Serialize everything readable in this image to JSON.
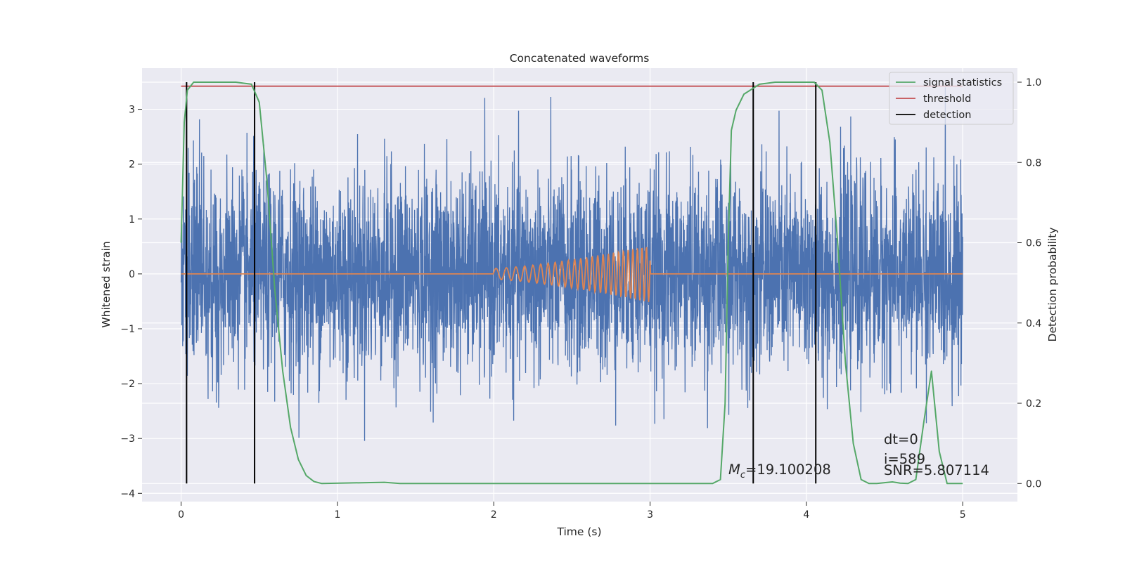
{
  "chart_data": {
    "type": "line",
    "title": "Concatenated waveforms",
    "xlabel": "Time (s)",
    "ylabel_left": "Whitened strain",
    "ylabel_right": "Detection probability",
    "xlim": [
      -0.25,
      5.35
    ],
    "ylim_left": [
      -4.15,
      3.75
    ],
    "ylim_right": [
      -0.045,
      1.035
    ],
    "x_ticks": [
      0,
      1,
      2,
      3,
      4,
      5
    ],
    "x_tick_labels": [
      "0",
      "1",
      "2",
      "3",
      "4",
      "5"
    ],
    "y_left_ticks": [
      3,
      2,
      1,
      0,
      -1,
      -2,
      -3,
      -4
    ],
    "y_left_tick_labels": [
      "3",
      "2",
      "1",
      "0",
      "−1",
      "−2",
      "−3",
      "−4"
    ],
    "y_right_ticks": [
      1.0,
      0.8,
      0.6,
      0.4,
      0.2,
      0.0
    ],
    "y_right_tick_labels": [
      "1.0",
      "0.8",
      "0.6",
      "0.4",
      "0.2",
      "0.0"
    ],
    "grid": true,
    "legend_position": "top-right",
    "series": [
      {
        "name": "whitened strain",
        "axis": "left",
        "color": "#4c72b0",
        "x_range": [
          0,
          5
        ],
        "noise_std": 0.9,
        "peak_range": [
          -3.6,
          3.4
        ],
        "in_legend": false
      },
      {
        "name": "injected waveform",
        "axis": "left",
        "color": "#dd8452",
        "x_range": [
          0,
          5
        ],
        "chirp_start": 2.0,
        "chirp_end": 3.0,
        "amplitude_start": 0.1,
        "amplitude_end": 0.52,
        "in_legend": false
      },
      {
        "name": "signal statistics",
        "axis": "right",
        "color": "#55a868",
        "x": [
          0.0,
          0.02,
          0.04,
          0.08,
          0.2,
          0.35,
          0.45,
          0.5,
          0.55,
          0.6,
          0.65,
          0.7,
          0.75,
          0.8,
          0.85,
          0.9,
          1.3,
          1.4,
          2.0,
          3.0,
          3.4,
          3.45,
          3.48,
          3.5,
          3.52,
          3.55,
          3.6,
          3.7,
          3.8,
          4.05,
          4.1,
          4.15,
          4.2,
          4.25,
          4.3,
          4.35,
          4.4,
          4.45,
          4.5,
          4.55,
          4.6,
          4.65,
          4.7,
          4.75,
          4.8,
          4.85,
          4.9,
          5.0
        ],
        "y": [
          0.6,
          0.9,
          0.98,
          1.0,
          1.0,
          1.0,
          0.995,
          0.95,
          0.75,
          0.48,
          0.28,
          0.14,
          0.06,
          0.02,
          0.005,
          0.0,
          0.003,
          0.0,
          0.0,
          0.0,
          0.0,
          0.01,
          0.2,
          0.6,
          0.88,
          0.93,
          0.97,
          0.995,
          1.0,
          1.0,
          0.98,
          0.85,
          0.6,
          0.3,
          0.1,
          0.01,
          0.0,
          0.0,
          0.002,
          0.004,
          0.001,
          0.0,
          0.01,
          0.15,
          0.28,
          0.08,
          0.0,
          0.0
        ],
        "in_legend": true
      },
      {
        "name": "threshold",
        "axis": "right",
        "color": "#c44e52",
        "x_range": [
          0,
          5
        ],
        "value": 0.99,
        "in_legend": true
      },
      {
        "name": "detection",
        "axis": "right",
        "color": "#000000",
        "x": [
          0.035,
          0.47,
          3.66,
          4.06
        ],
        "y_range": [
          0.0,
          1.0
        ],
        "in_legend": true
      }
    ],
    "annotations": {
      "chirp_mass": "=19.100208",
      "chirp_mass_symbol": "M",
      "chirp_mass_subscript": "c",
      "dt": "dt=0",
      "index": "i=589",
      "snr": "SNR=5.807114"
    }
  },
  "colors": {
    "axes_bg": "#eaeaf2",
    "grid": "#ffffff",
    "text": "#262626"
  }
}
